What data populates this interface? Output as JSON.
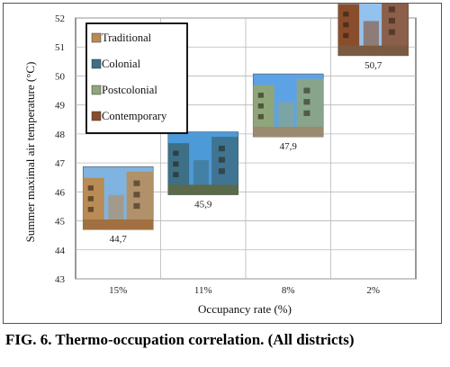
{
  "caption": "FIG. 6. Thermo-occupation correlation. (All districts)",
  "chart_data": {
    "type": "scatter",
    "xlabel": "Occupancy rate (%)",
    "ylabel": "Summer maximal air temperature (°C)",
    "categories": [
      "15%",
      "11%",
      "8%",
      "2%"
    ],
    "ylim": [
      43,
      52
    ],
    "yticks": [
      "43",
      "44",
      "45",
      "46",
      "47",
      "48",
      "49",
      "50",
      "51",
      "52"
    ],
    "grid": true,
    "legend_position": "top-left",
    "series": [
      {
        "name": "Traditional",
        "x": "15%",
        "value": 44.7,
        "label": "44,7",
        "color": "#b98b55",
        "sky": "#7fb3e0",
        "ground": "#a07040"
      },
      {
        "name": "Colonial",
        "x": "11%",
        "value": 45.9,
        "label": "45,9",
        "color": "#3d6f86",
        "sky": "#4d9ad8",
        "ground": "#5a6a4a"
      },
      {
        "name": "Postcolonial",
        "x": "8%",
        "value": 47.9,
        "label": "47,9",
        "color": "#8fa67a",
        "sky": "#5ea2e6",
        "ground": "#9a8a70"
      },
      {
        "name": "Contemporary",
        "x": "2%",
        "value": 50.7,
        "label": "50,7",
        "color": "#8a4d2c",
        "sky": "#93c2ee",
        "ground": "#7a5a40"
      }
    ]
  }
}
